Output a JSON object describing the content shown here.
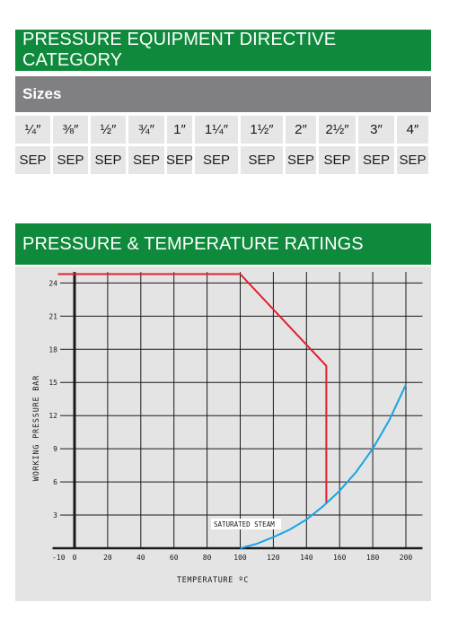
{
  "section1": {
    "title": "PRESSURE EQUIPMENT DIRECTIVE CATEGORY",
    "sizes_label": "Sizes",
    "sizes": [
      "¼″",
      "⅜″",
      "½″",
      "¾″",
      "1″",
      "1¼″",
      "1½″",
      "2″",
      "2½″",
      "3″",
      "4″"
    ],
    "categories": [
      "SEP",
      "SEP",
      "SEP",
      "SEP",
      "SEP",
      "SEP",
      "SEP",
      "SEP",
      "SEP",
      "SEP",
      "SEP"
    ]
  },
  "section2": {
    "title": "PRESSURE & TEMPERATURE RATINGS"
  },
  "colors": {
    "banner_green": "#0f8a3c",
    "sizes_grey": "#808083",
    "cell_grey": "#e6e6e7",
    "panel_grey": "#e4e4e4",
    "rating_line": "#e0202a",
    "steam_curve": "#1aa3e8"
  },
  "chart_data": {
    "type": "line",
    "xlabel": "TEMPERATURE ºC",
    "ylabel": "WORKING PRESSURE BAR",
    "xlim": [
      -10,
      210
    ],
    "ylim": [
      0,
      25
    ],
    "x_ticks": [
      -10,
      0,
      20,
      40,
      60,
      80,
      100,
      120,
      140,
      160,
      180,
      200
    ],
    "y_ticks": [
      3,
      6,
      9,
      12,
      15,
      18,
      21,
      24
    ],
    "grid": true,
    "annotation": "SATURATED STEAM",
    "series": [
      {
        "role": "pressure-temperature-rating",
        "color": "#e0202a",
        "points": [
          [
            -10,
            24.8
          ],
          [
            100,
            24.8
          ],
          [
            152,
            16.5
          ],
          [
            152,
            4
          ]
        ]
      },
      {
        "role": "saturated-steam-curve",
        "color": "#1aa3e8",
        "points": [
          [
            100,
            0
          ],
          [
            110,
            0.4
          ],
          [
            120,
            1.0
          ],
          [
            130,
            1.7
          ],
          [
            140,
            2.6
          ],
          [
            150,
            3.8
          ],
          [
            160,
            5.2
          ],
          [
            170,
            6.9
          ],
          [
            180,
            9.0
          ],
          [
            190,
            11.6
          ],
          [
            200,
            14.8
          ]
        ]
      }
    ]
  }
}
